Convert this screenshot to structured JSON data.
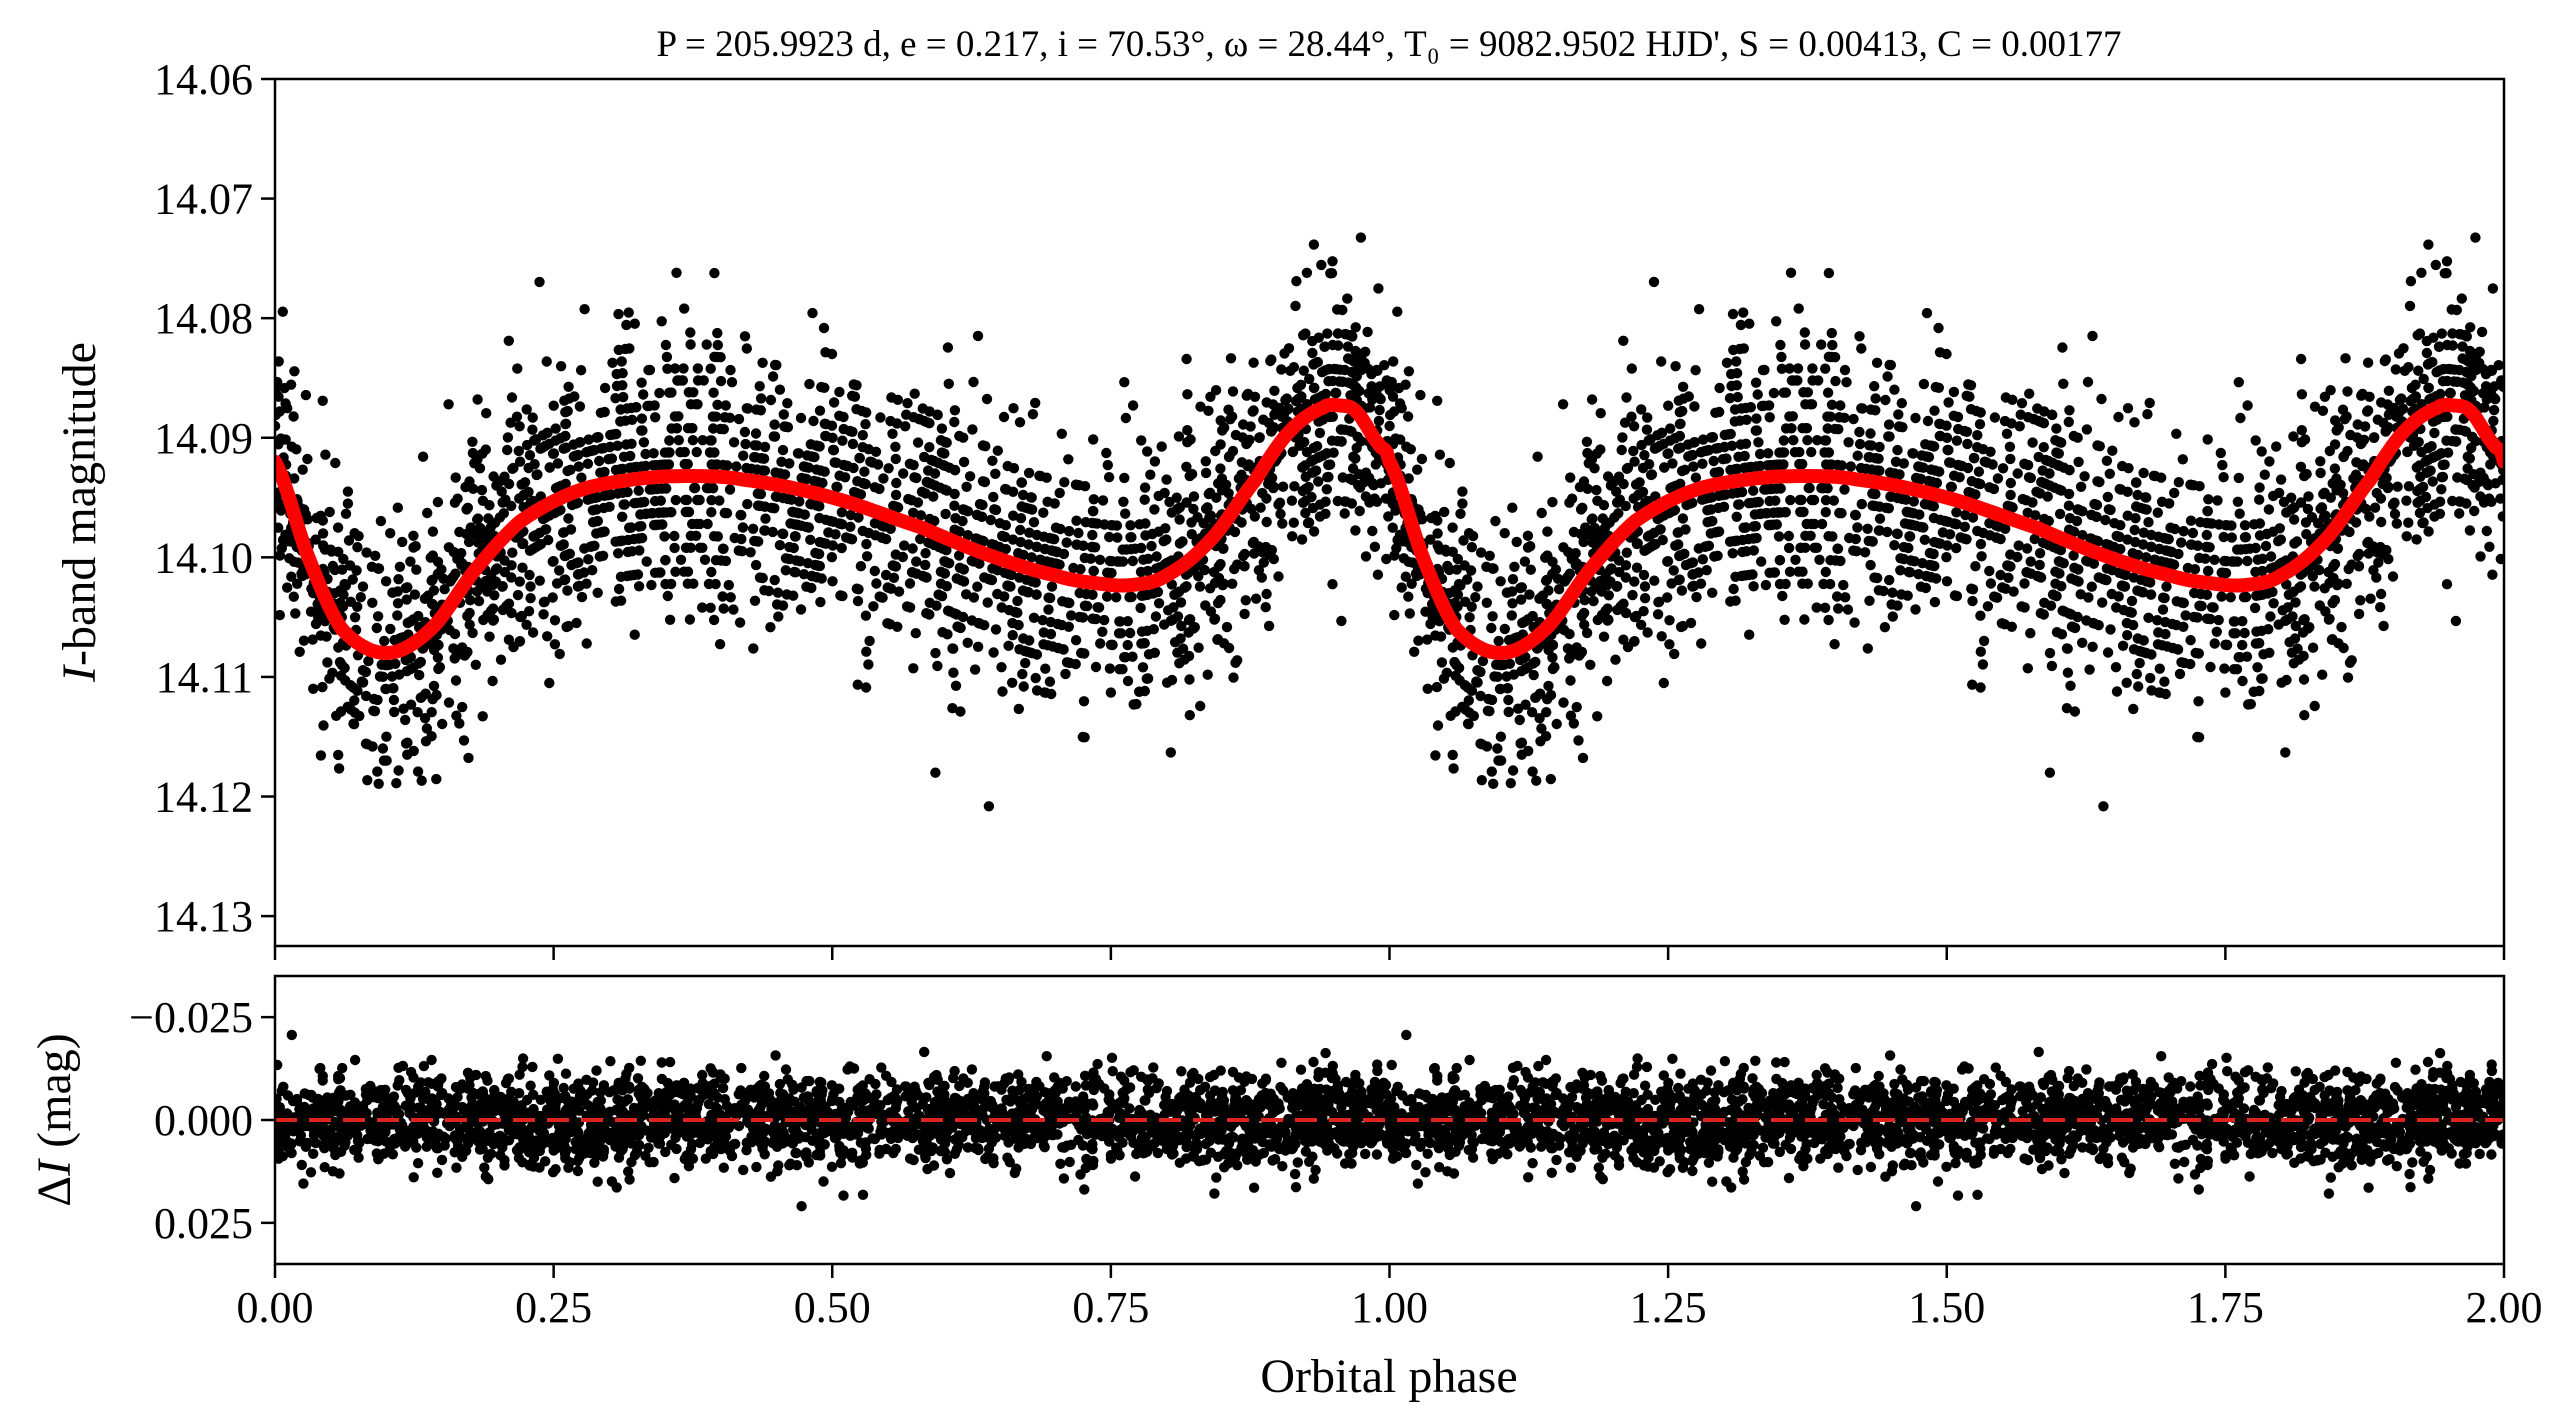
{
  "chart_data": [
    {
      "panel": "light-curve",
      "type": "scatter",
      "title": "P = 205.9923 d, e = 0.217, i = 70.53°, ω = 28.44°, T₀ = 9082.9502 HJD', S = 0.00413, C = 0.00177",
      "ylabel": "I-band magnitude",
      "xlim": [
        0,
        2
      ],
      "ylim": [
        14.0,
        14.2
      ],
      "y_inverted": true,
      "xticks": [
        0.0,
        0.25,
        0.5,
        0.75,
        1.0,
        1.25,
        1.5,
        1.75,
        2.0
      ],
      "yticks": [
        "14.06",
        "14.07",
        "14.08",
        "14.09",
        "14.10",
        "14.11",
        "14.12",
        "14.13"
      ],
      "yticks_values": [
        14.06,
        14.07,
        14.08,
        14.09,
        14.1,
        14.11,
        14.12,
        14.13
      ],
      "ylim_display": [
        14.1325,
        14.06
      ],
      "period_in_phase": 1,
      "series": [
        {
          "kind": "data points (black dots)",
          "color": "#000000",
          "scatter_sigma_mag": 0.0065,
          "approx_count_per_cycle": 2500
        },
        {
          "kind": "model curve",
          "color": "#ff0000",
          "x": [
            0.0,
            0.03,
            0.06,
            0.1,
            0.14,
            0.18,
            0.22,
            0.27,
            0.32,
            0.37,
            0.42,
            0.5,
            0.58,
            0.64,
            0.7,
            0.74,
            0.77,
            0.8,
            0.84,
            0.88,
            0.91,
            0.94,
            0.955,
            0.97,
            0.99,
            1.0
          ],
          "y": [
            14.092,
            14.1,
            14.106,
            14.108,
            14.106,
            14.101,
            14.097,
            14.0945,
            14.0935,
            14.0932,
            14.0935,
            14.095,
            14.0975,
            14.0998,
            14.1015,
            14.1022,
            14.1023,
            14.1015,
            14.0985,
            14.0935,
            14.0895,
            14.0875,
            14.0873,
            14.0878,
            14.0905,
            14.092
          ]
        }
      ]
    },
    {
      "panel": "residuals",
      "type": "scatter",
      "xlabel": "Orbital phase",
      "ylabel": "ΔI (mag)",
      "xlim": [
        0,
        2
      ],
      "ylim": [
        0.035,
        -0.035
      ],
      "xticks": [
        "0.00",
        "0.25",
        "0.50",
        "0.75",
        "1.00",
        "1.25",
        "1.50",
        "1.75",
        "2.00"
      ],
      "xticks_values": [
        0.0,
        0.25,
        0.5,
        0.75,
        1.0,
        1.25,
        1.5,
        1.75,
        2.0
      ],
      "yticks": [
        "−0.025",
        "0.000",
        "0.025"
      ],
      "yticks_values": [
        -0.025,
        0.0,
        0.025
      ],
      "zero_line": {
        "y": 0.0,
        "style": "dashed",
        "color": "#dd2222"
      },
      "series": [
        {
          "kind": "residual points (black dots)",
          "color": "#000000",
          "scatter_sigma_mag": 0.0055
        }
      ]
    }
  ]
}
